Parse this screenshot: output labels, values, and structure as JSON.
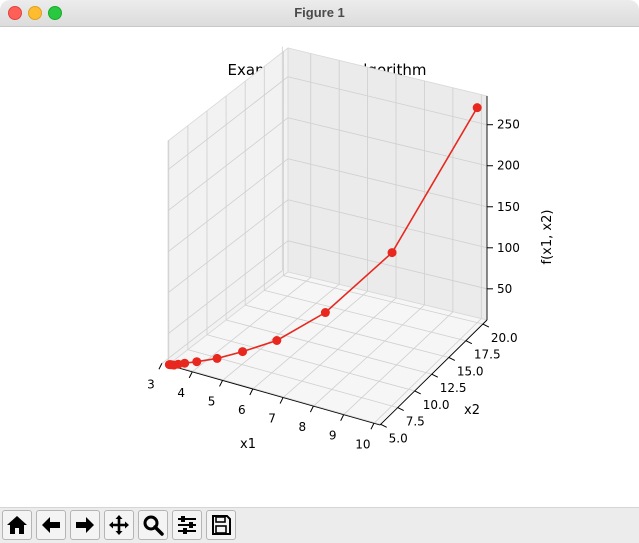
{
  "window": {
    "title": "Figure 1"
  },
  "toolbar": {
    "buttons": [
      {
        "icon": "home-icon"
      },
      {
        "icon": "back-arrow-icon"
      },
      {
        "icon": "forward-arrow-icon"
      },
      {
        "icon": "pan-icon"
      },
      {
        "icon": "zoom-icon"
      },
      {
        "icon": "configure-subplots-icon"
      },
      {
        "icon": "save-icon"
      }
    ]
  },
  "chart_data": {
    "type": "line3d",
    "title": "Example of SGD algorithm",
    "xlabel": "x1",
    "ylabel": "x2",
    "zlabel": "f(x1, x2)",
    "x_ticks": [
      "3",
      "4",
      "5",
      "6",
      "7",
      "8",
      "9",
      "10"
    ],
    "y_ticks": [
      "5.0",
      "7.5",
      "10.0",
      "12.5",
      "15.0",
      "17.5",
      "20.0"
    ],
    "z_ticks": [
      "50",
      "100",
      "150",
      "200",
      "250"
    ],
    "line_color": "#e8281e",
    "marker": "o",
    "series": [
      {
        "x1": [
          10.0,
          8.2,
          6.8,
          5.8,
          5.0,
          4.4,
          3.9,
          3.6,
          3.45,
          3.35,
          3.28,
          3.24,
          3.22
        ],
        "x2": [
          20.0,
          15.2,
          11.6,
          9.0,
          7.6,
          6.6,
          5.9,
          5.5,
          5.25,
          5.1,
          5.05,
          5.02,
          5.0
        ],
        "f": [
          274,
          120,
          62,
          38,
          27,
          20,
          16,
          14,
          13,
          12,
          12,
          12,
          12
        ]
      }
    ]
  }
}
